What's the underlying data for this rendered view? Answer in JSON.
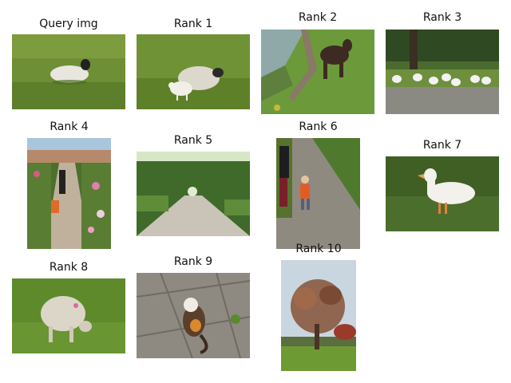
{
  "items": [
    {
      "caption": "Query img"
    },
    {
      "caption": "Rank 1"
    },
    {
      "caption": "Rank 2"
    },
    {
      "caption": "Rank 3"
    },
    {
      "caption": "Rank 4"
    },
    {
      "caption": "Rank 5"
    },
    {
      "caption": "Rank 6"
    },
    {
      "caption": "Rank 7"
    },
    {
      "caption": "Rank 8"
    },
    {
      "caption": "Rank 9"
    },
    {
      "caption": "Rank 10"
    }
  ]
}
